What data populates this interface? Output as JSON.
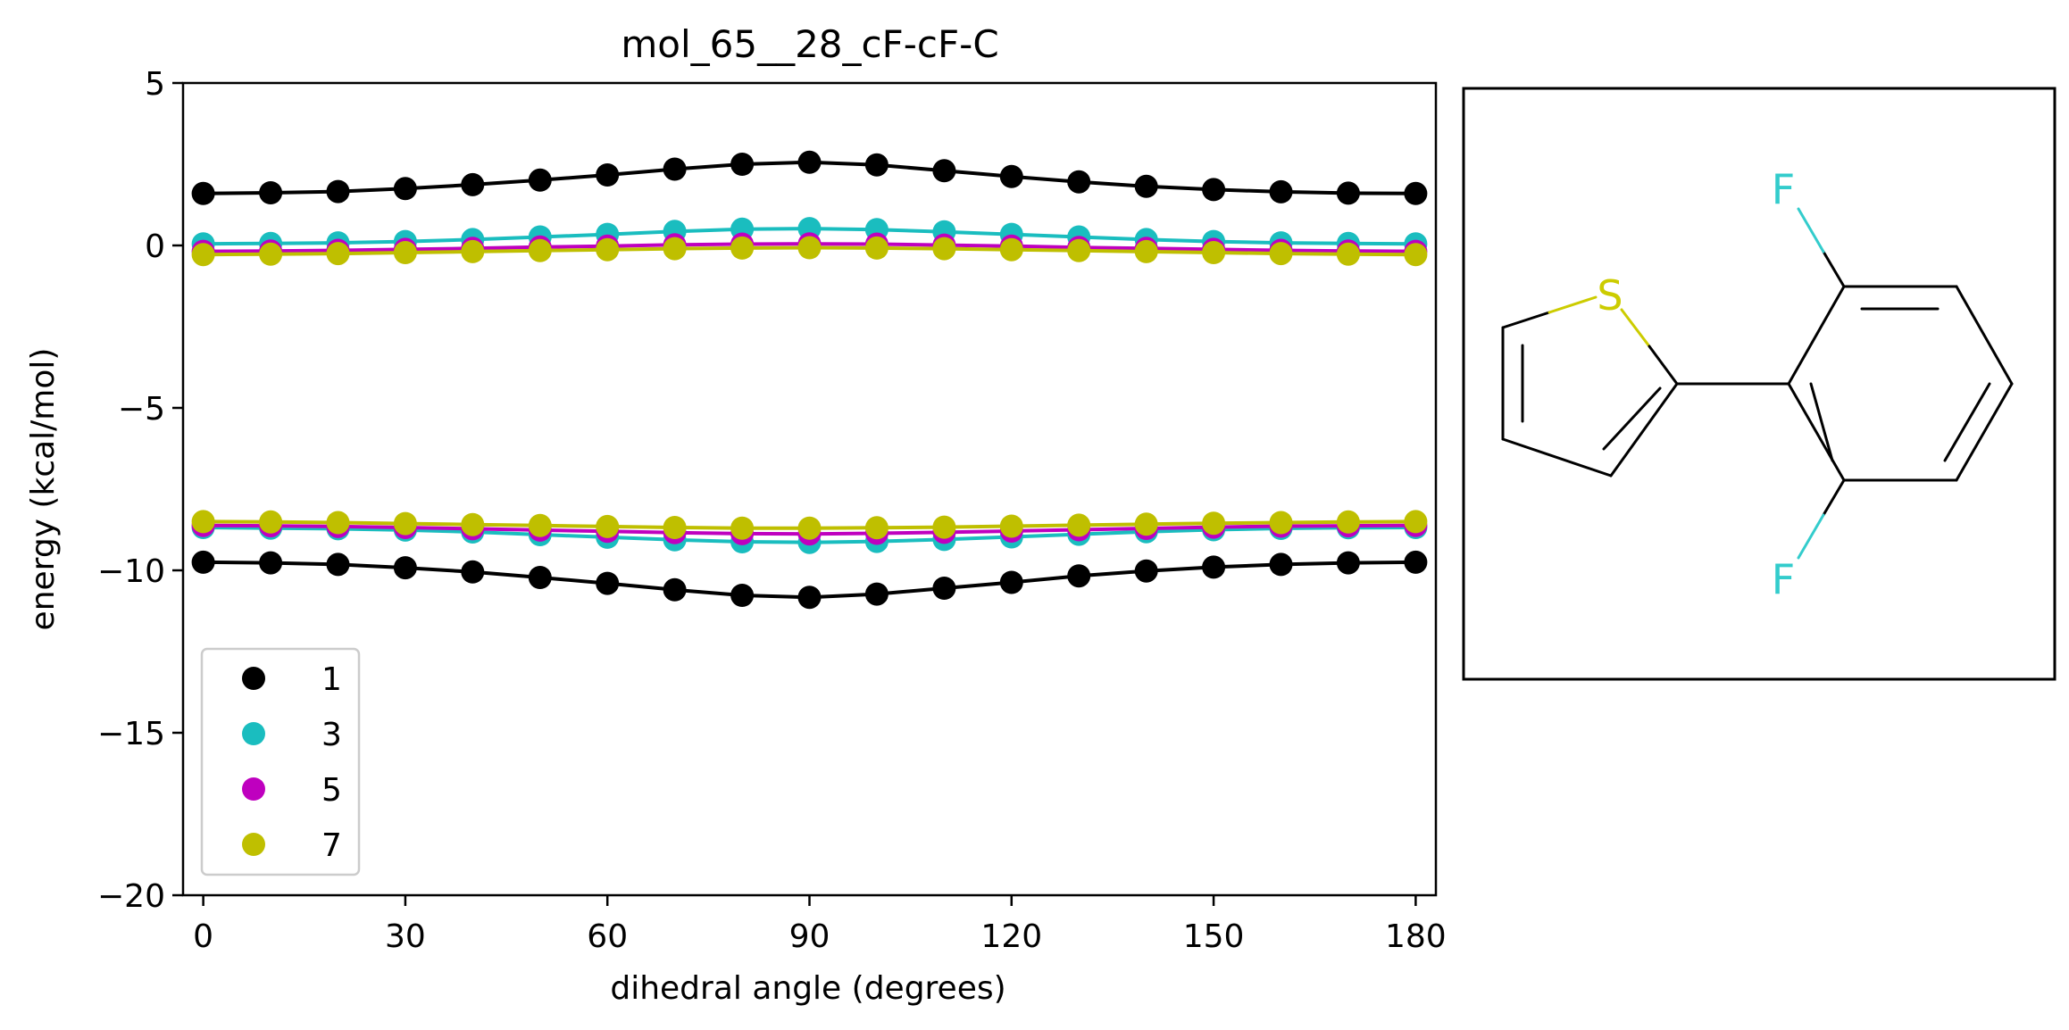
{
  "chart_data": {
    "type": "line",
    "title": "mol_65__28_cF-cF-C",
    "xlabel": "dihedral angle (degrees)",
    "ylabel": "energy (kcal/mol)",
    "xlim": [
      -3,
      183
    ],
    "ylim": [
      -20,
      5
    ],
    "x_ticks": [
      0,
      30,
      60,
      90,
      120,
      150,
      180
    ],
    "y_ticks": [
      5,
      0,
      -5,
      -10,
      -15,
      -20
    ],
    "y_tick_labels": [
      "5",
      "0",
      "−5",
      "−10",
      "−15",
      "−20"
    ],
    "grid": false,
    "legend_position": "lower-left",
    "x": [
      0,
      10,
      20,
      30,
      40,
      50,
      60,
      70,
      80,
      90,
      100,
      110,
      120,
      130,
      140,
      150,
      160,
      170,
      180
    ],
    "series": [
      {
        "name": "1",
        "color": "#000000",
        "upper": [
          1.6,
          1.62,
          1.66,
          1.75,
          1.87,
          2.01,
          2.17,
          2.35,
          2.5,
          2.56,
          2.48,
          2.3,
          2.12,
          1.96,
          1.82,
          1.72,
          1.65,
          1.61,
          1.6
        ],
        "lower": [
          -9.75,
          -9.77,
          -9.82,
          -9.92,
          -10.05,
          -10.22,
          -10.4,
          -10.6,
          -10.77,
          -10.83,
          -10.73,
          -10.55,
          -10.37,
          -10.17,
          -10.02,
          -9.9,
          -9.82,
          -9.77,
          -9.75
        ]
      },
      {
        "name": "3",
        "color": "#1abdbf",
        "upper": [
          0.05,
          0.06,
          0.08,
          0.12,
          0.18,
          0.26,
          0.34,
          0.43,
          0.5,
          0.52,
          0.49,
          0.42,
          0.34,
          0.26,
          0.18,
          0.12,
          0.08,
          0.06,
          0.05
        ],
        "lower": [
          -8.68,
          -8.7,
          -8.72,
          -8.76,
          -8.82,
          -8.9,
          -8.98,
          -9.06,
          -9.12,
          -9.14,
          -9.11,
          -9.05,
          -8.97,
          -8.89,
          -8.81,
          -8.75,
          -8.71,
          -8.69,
          -8.68
        ]
      },
      {
        "name": "5",
        "color": "#bf00bf",
        "upper": [
          -0.18,
          -0.17,
          -0.15,
          -0.12,
          -0.09,
          -0.05,
          -0.02,
          0.02,
          0.04,
          0.05,
          0.04,
          0.01,
          -0.02,
          -0.06,
          -0.09,
          -0.12,
          -0.15,
          -0.17,
          -0.18
        ],
        "lower": [
          -8.62,
          -8.63,
          -8.65,
          -8.68,
          -8.72,
          -8.76,
          -8.8,
          -8.84,
          -8.87,
          -8.88,
          -8.86,
          -8.83,
          -8.79,
          -8.75,
          -8.71,
          -8.67,
          -8.64,
          -8.63,
          -8.62
        ]
      },
      {
        "name": "7",
        "color": "#bfbf00",
        "upper": [
          -0.28,
          -0.27,
          -0.25,
          -0.22,
          -0.19,
          -0.16,
          -0.13,
          -0.1,
          -0.08,
          -0.07,
          -0.08,
          -0.1,
          -0.13,
          -0.16,
          -0.19,
          -0.22,
          -0.25,
          -0.27,
          -0.28
        ],
        "lower": [
          -8.5,
          -8.51,
          -8.53,
          -8.56,
          -8.59,
          -8.62,
          -8.65,
          -8.68,
          -8.7,
          -8.7,
          -8.69,
          -8.67,
          -8.64,
          -8.61,
          -8.58,
          -8.55,
          -8.53,
          -8.51,
          -8.5
        ]
      }
    ]
  },
  "molecule": {
    "atom_labels": [
      {
        "symbol": "S",
        "color": "#cccc00"
      },
      {
        "symbol": "F",
        "color": "#33cccc"
      },
      {
        "symbol": "F",
        "color": "#33cccc"
      }
    ]
  }
}
